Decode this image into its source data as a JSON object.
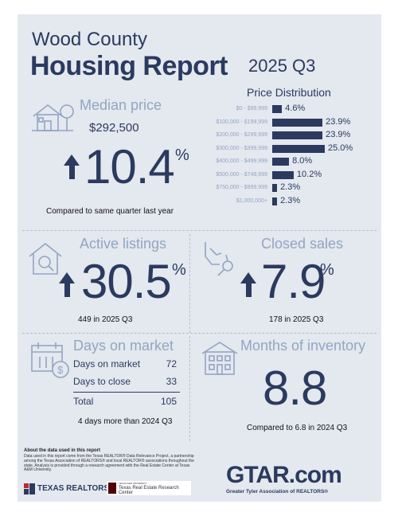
{
  "header": {
    "county": "Wood County",
    "report": "Housing Report",
    "period": "2025 Q3"
  },
  "price_distribution": {
    "title": "Price Distribution",
    "rows": [
      {
        "label": "$0 - $99,999",
        "value": "4.6%",
        "pct": 4.6
      },
      {
        "label": "$100,000 - $199,999",
        "value": "23.9%",
        "pct": 23.9
      },
      {
        "label": "$200,000 - $299,999",
        "value": "23.9%",
        "pct": 23.9
      },
      {
        "label": "$300,000 - $399,999",
        "value": "25.0%",
        "pct": 25.0
      },
      {
        "label": "$400,000 - $499,999",
        "value": "8.0%",
        "pct": 8.0
      },
      {
        "label": "$500,000 - $749,999",
        "value": "10.2%",
        "pct": 10.2
      },
      {
        "label": "$750,000 - $999,999",
        "value": "2.3%",
        "pct": 2.3
      },
      {
        "label": "$1,000,000+",
        "value": "2.3%",
        "pct": 2.3
      }
    ]
  },
  "median_price": {
    "title": "Median price",
    "value": "$292,500",
    "change": "10.4",
    "pct_sign": "%",
    "note": "Compared to same quarter last year"
  },
  "active_listings": {
    "title": "Active listings",
    "change": "30.5",
    "pct_sign": "%",
    "note": "449 in 2025 Q3"
  },
  "closed_sales": {
    "title": "Closed sales",
    "change": "7.9",
    "pct_sign": "%",
    "note": "178 in 2025 Q3"
  },
  "days_on_market": {
    "title": "Days on market",
    "rows": [
      {
        "label": "Days on market",
        "value": "72"
      },
      {
        "label": "Days to close",
        "value": "33"
      }
    ],
    "total_label": "Total",
    "total_value": "105",
    "note": "4 days more than 2024 Q3"
  },
  "months_inventory": {
    "title": "Months of inventory",
    "value": "8.8",
    "note": "Compared to 6.8 in 2024 Q3"
  },
  "about": {
    "title": "About the data used in this report",
    "text": "Data used in this report come from the Texas REALTOR® Data Relevance Project, a partnership among the Texas Association of REALTORS® and local REALTOR® associations throughout the state. Analysis is provided through a research agreement with the Real Estate Center at Texas A&M University."
  },
  "logos": {
    "texas_realtors": "TEXAS REALTORS",
    "tamu_small": "TEXAS A&M UNIVERSITY",
    "tamu": "Texas Real Estate Research Center",
    "gtar": "GTAR.com",
    "gtar_sub": "Greater Tyler Association of REALTORS®"
  },
  "colors": {
    "navy": "#2b3a5e",
    "light": "#93a5c3",
    "panel": "#e4e8ef",
    "red": "#c0272d",
    "maroon": "#500000"
  }
}
